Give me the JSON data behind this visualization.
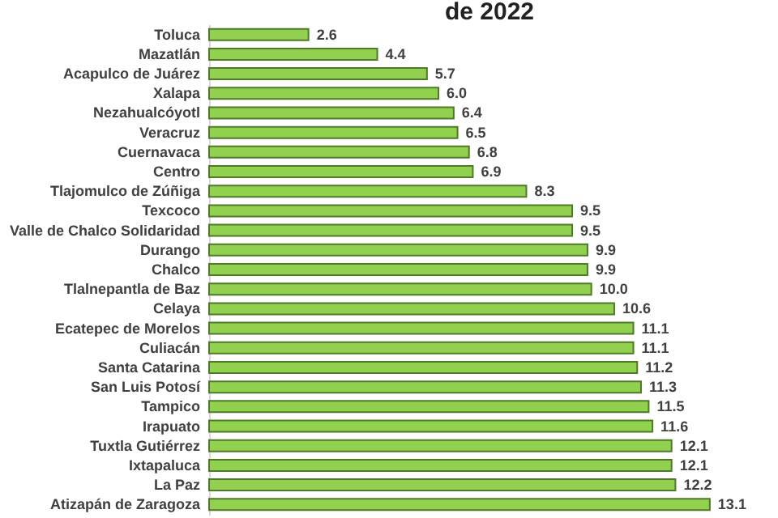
{
  "chart_data": {
    "type": "bar",
    "orientation": "horizontal",
    "title": "de 2022",
    "categories": [
      "Toluca",
      "Mazatlán",
      "Acapulco de Juárez",
      "Xalapa",
      "Nezahualcóyotl",
      "Veracruz",
      "Cuernavaca",
      "Centro",
      "Tlajomulco de Zúñiga",
      "Texcoco",
      "Valle de Chalco Solidaridad",
      "Durango",
      "Chalco",
      "Tlalnepantla de Baz",
      "Celaya",
      "Ecatepec de Morelos",
      "Culiacán",
      "Santa Catarina",
      "San Luis Potosí",
      "Tampico",
      "Irapuato",
      "Tuxtla Gutiérrez",
      "Ixtapaluca",
      "La Paz",
      "Atizapán de Zaragoza"
    ],
    "values": [
      2.6,
      4.4,
      5.7,
      6.0,
      6.4,
      6.5,
      6.8,
      6.9,
      8.3,
      9.5,
      9.5,
      9.9,
      9.9,
      10.0,
      10.6,
      11.1,
      11.1,
      11.2,
      11.3,
      11.5,
      11.6,
      12.1,
      12.1,
      12.2,
      13.1
    ],
    "value_labels": [
      "2.6",
      "4.4",
      "5.7",
      "6.0",
      "6.4",
      "6.5",
      "6.8",
      "6.9",
      "8.3",
      "9.5",
      "9.5",
      "9.9",
      "9.9",
      "10.0",
      "10.6",
      "11.1",
      "11.1",
      "11.2",
      "11.3",
      "11.5",
      "11.6",
      "12.1",
      "12.1",
      "12.2",
      "13.1"
    ],
    "color": "#92d050"
  }
}
